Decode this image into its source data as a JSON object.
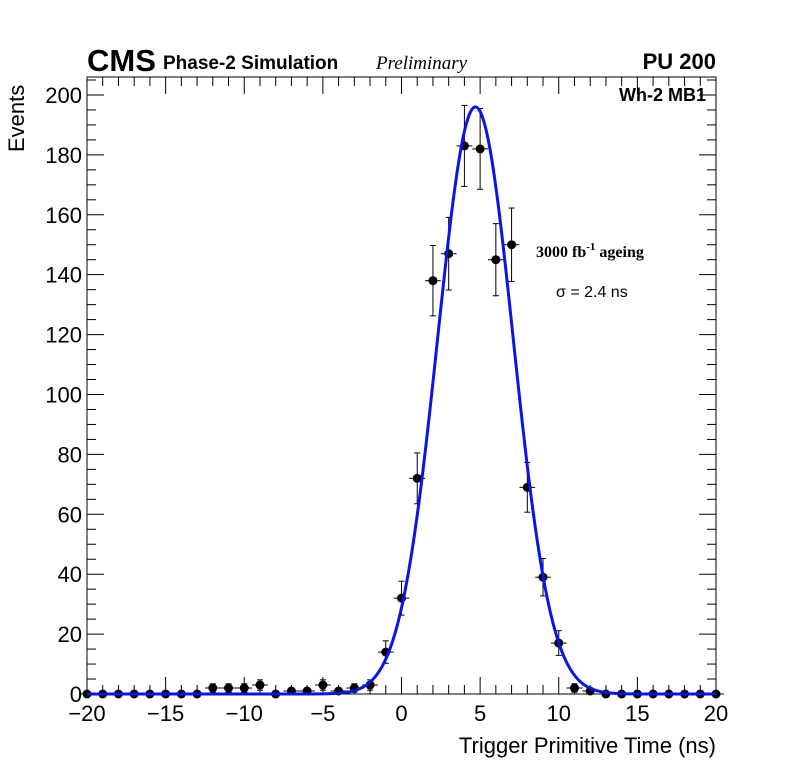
{
  "header": {
    "experiment": "CMS",
    "simulation": "Phase-2 Simulation",
    "status": "Preliminary",
    "pileup": "PU 200"
  },
  "annotations": {
    "region": "Wh-2 MB1",
    "ageing_value": "3000 fb",
    "ageing_exponent": "-1",
    "ageing_suffix": " ageing",
    "resolution": "σ = 2.4 ns"
  },
  "colors": {
    "fit": "#0a14e6",
    "points": "#000000"
  },
  "chart_data": {
    "type": "scatter",
    "title": "",
    "xlabel": "Trigger Primitive Time (ns)",
    "ylabel": "Events",
    "xlim": [
      -20,
      20
    ],
    "ylim": [
      0,
      206
    ],
    "x_ticks": [
      -20,
      -15,
      -10,
      -5,
      0,
      5,
      10,
      15,
      20
    ],
    "x_tick_labels": [
      "−20",
      "−15",
      "−10",
      "−5",
      "0",
      "5",
      "10",
      "15",
      "20"
    ],
    "y_ticks": [
      0,
      20,
      40,
      60,
      80,
      100,
      120,
      140,
      160,
      180,
      200
    ],
    "y_tick_labels": [
      "0",
      "20",
      "40",
      "60",
      "80",
      "100",
      "120",
      "140",
      "160",
      "180",
      "200"
    ],
    "bin_width": 1,
    "series": [
      {
        "name": "Simulation",
        "x": [
          -20,
          -19,
          -18,
          -17,
          -16,
          -15,
          -14,
          -13,
          -12,
          -11,
          -10,
          -9,
          -8,
          -7,
          -6,
          -5,
          -4,
          -3,
          -2,
          -1,
          0,
          1,
          2,
          3,
          4,
          5,
          6,
          7,
          8,
          9,
          10,
          11,
          12,
          13,
          14,
          15,
          16,
          17,
          18,
          19,
          20
        ],
        "y": [
          0,
          0,
          0,
          0,
          0,
          0,
          0,
          0,
          2,
          2,
          2,
          3,
          0,
          1,
          1,
          3,
          1,
          2,
          3,
          14,
          32,
          72,
          138,
          147,
          183,
          182,
          145,
          150,
          69,
          39,
          17,
          2,
          1,
          0,
          0,
          0,
          0,
          0,
          0,
          0,
          0
        ]
      },
      {
        "name": "Gaussian fit",
        "type": "line",
        "amplitude": 196,
        "mean": 4.7,
        "sigma": 2.4
      }
    ]
  }
}
